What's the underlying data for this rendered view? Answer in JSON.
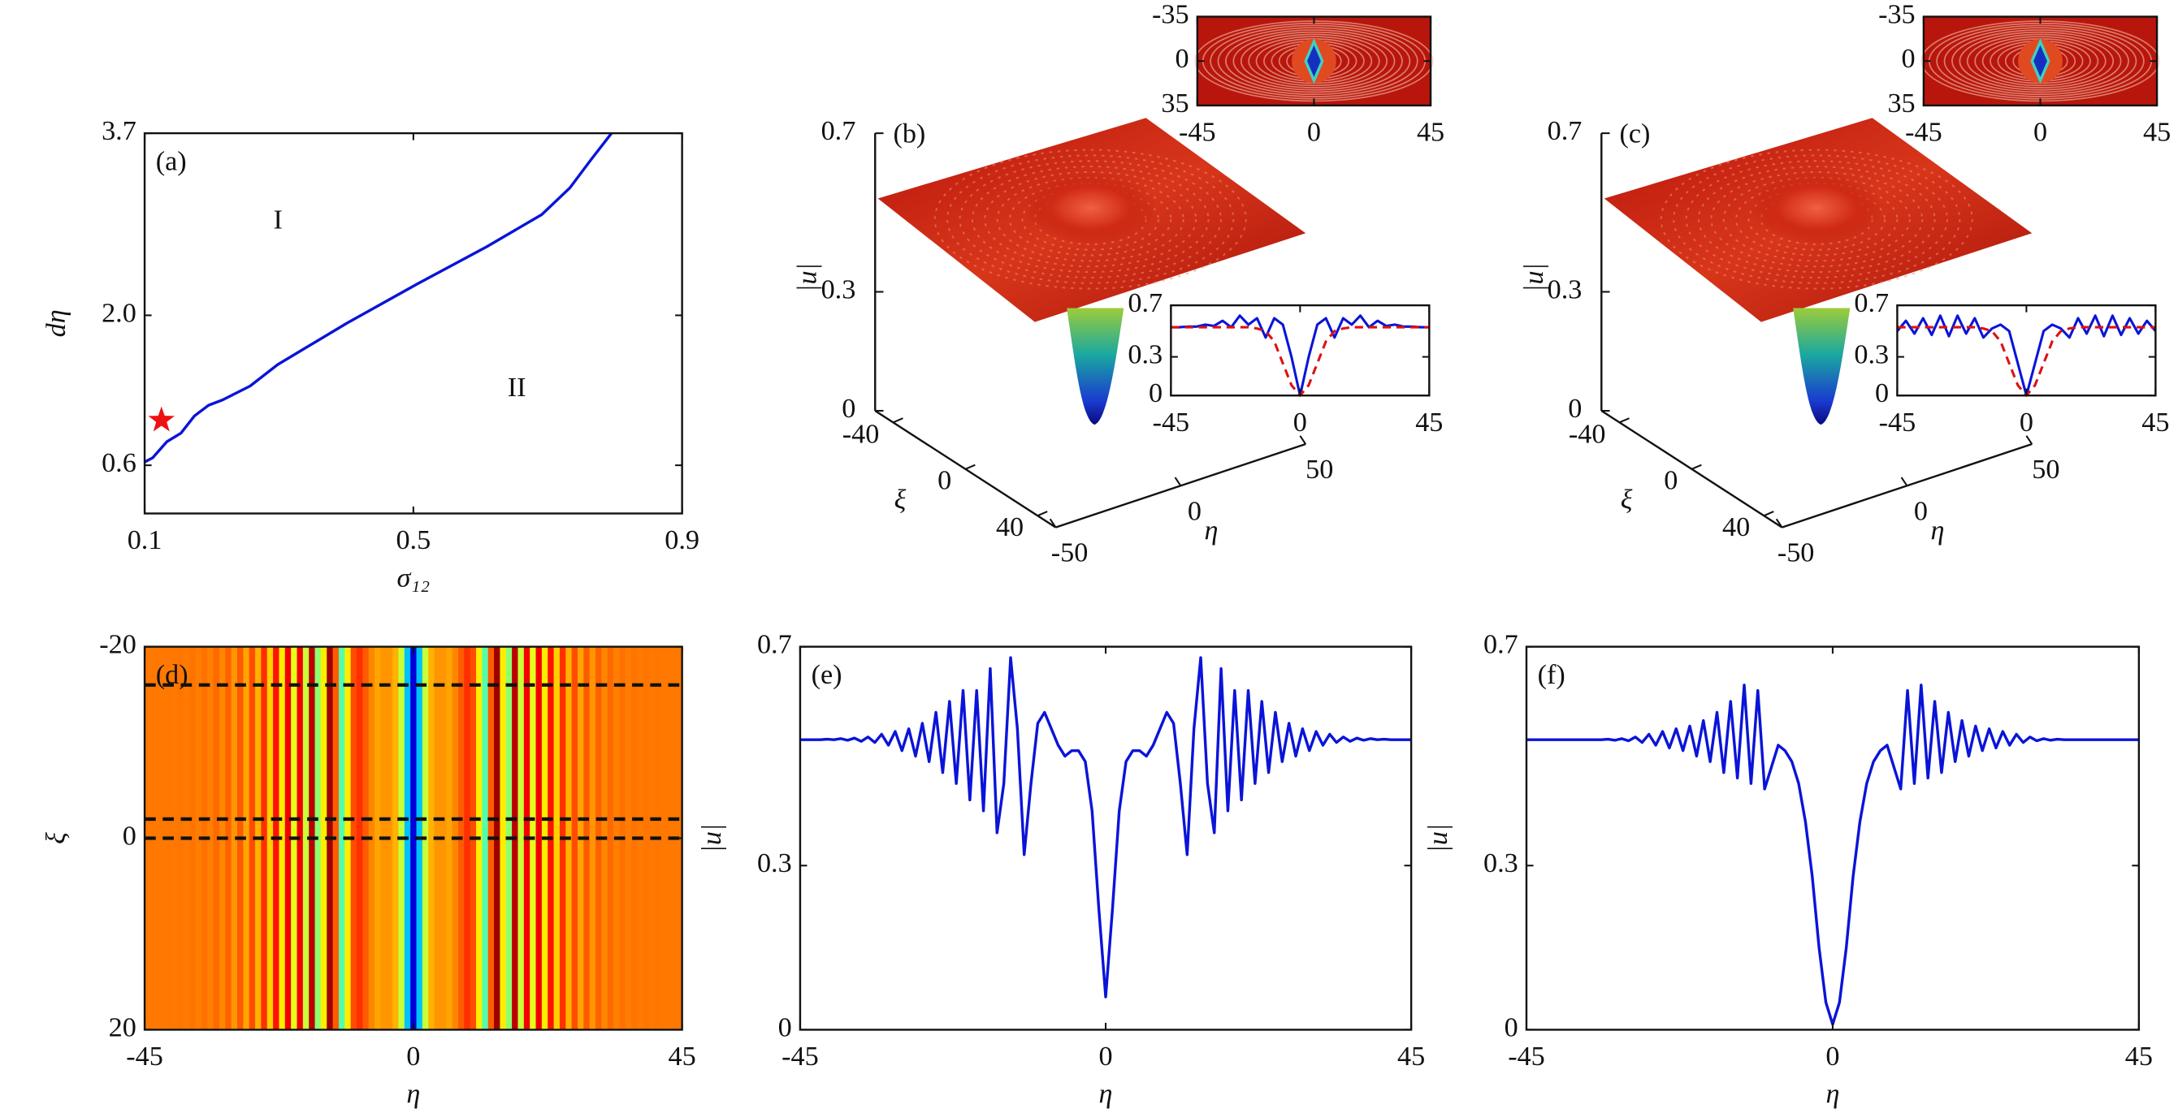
{
  "chart_data": [
    {
      "type": "line",
      "panel": "(a)",
      "xlabel": "σ₁₂",
      "ylabel": "dη",
      "xlim": [
        0.1,
        0.9
      ],
      "ylim": [
        0.15,
        3.7
      ],
      "xticks": [
        0.1,
        0.5,
        0.9
      ],
      "yticks": [
        0.6,
        {
          "value": 2,
          "label": "2.0"
        },
        3.7
      ],
      "x": [
        0.1,
        0.112,
        0.133,
        0.154,
        0.174,
        0.195,
        0.216,
        0.257,
        0.298,
        0.402,
        0.505,
        0.609,
        0.691,
        0.733,
        0.764,
        0.795
      ],
      "series": [
        {
          "color": "#0a14d8",
          "values": [
            0.63,
            0.67,
            0.82,
            0.9,
            1.06,
            1.16,
            1.21,
            1.34,
            1.54,
            1.93,
            2.29,
            2.64,
            2.94,
            3.19,
            3.45,
            3.7
          ]
        }
      ],
      "marker": {
        "x": 0.125,
        "y": 1.02,
        "color": "#ee1111"
      },
      "region_labels": [
        "I",
        "II"
      ]
    },
    {
      "type": "surface3d",
      "panel": "(b)",
      "zlabel": "|u|",
      "xilabel": "ξ",
      "etalabel": "η",
      "zlim": [
        0,
        0.7
      ],
      "zticks": [
        0,
        0.3,
        0.7
      ],
      "xilim": [
        -50,
        50
      ],
      "xiticks": [
        -40,
        0,
        40
      ],
      "etalim": [
        -50,
        50
      ],
      "etaticks": [
        -50,
        0,
        50
      ],
      "top_inset": {
        "xlim": [
          -45,
          45
        ],
        "xticks": [
          -45,
          0,
          45
        ],
        "ylim": [
          -35,
          35
        ],
        "yticks": [
          -35,
          0,
          35
        ],
        "y_inverted": true
      },
      "side_inset": {
        "type": "line",
        "xlim": [
          -45,
          45
        ],
        "xticks": [
          -45,
          0,
          45
        ],
        "ylim": [
          0,
          0.7
        ],
        "yticks": [
          0,
          0.3,
          0.7
        ],
        "x": [
          -45,
          -42,
          -39,
          -36,
          -33,
          -30,
          -27,
          -24,
          -21,
          -18,
          -15,
          -12,
          -9,
          -6,
          -3,
          0,
          3,
          6,
          9,
          12,
          15,
          18,
          21,
          24,
          27,
          30,
          33,
          36,
          39,
          42,
          45
        ],
        "series": [
          {
            "color": "#0a14d8",
            "values": [
              0.53,
              0.53,
              0.535,
              0.535,
              0.55,
              0.54,
              0.58,
              0.53,
              0.62,
              0.55,
              0.6,
              0.45,
              0.6,
              0.55,
              0.3,
              0.0,
              0.3,
              0.55,
              0.6,
              0.45,
              0.6,
              0.55,
              0.62,
              0.53,
              0.58,
              0.54,
              0.55,
              0.535,
              0.535,
              0.53,
              0.53
            ]
          },
          {
            "color": "#dd1111",
            "dash": true,
            "values": [
              0.53,
              0.53,
              0.53,
              0.53,
              0.53,
              0.53,
              0.53,
              0.53,
              0.53,
              0.53,
              0.52,
              0.5,
              0.42,
              0.25,
              0.08,
              0,
              0.08,
              0.25,
              0.42,
              0.5,
              0.52,
              0.53,
              0.53,
              0.53,
              0.53,
              0.53,
              0.53,
              0.53,
              0.53,
              0.53,
              0.53
            ]
          }
        ]
      }
    },
    {
      "type": "surface3d",
      "panel": "(c)",
      "zlabel": "|u|",
      "xilabel": "ξ",
      "etalabel": "η",
      "zlim": [
        0,
        0.7
      ],
      "zticks": [
        0,
        0.3,
        0.7
      ],
      "xilim": [
        -50,
        50
      ],
      "xiticks": [
        -40,
        0,
        40
      ],
      "etalim": [
        -50,
        50
      ],
      "etaticks": [
        -50,
        0,
        50
      ],
      "top_inset": {
        "xlim": [
          -45,
          45
        ],
        "xticks": [
          -45,
          0,
          45
        ],
        "ylim": [
          -35,
          35
        ],
        "yticks": [
          -35,
          0,
          35
        ],
        "y_inverted": true
      },
      "side_inset": {
        "type": "line",
        "xlim": [
          -45,
          45
        ],
        "xticks": [
          -45,
          0,
          45
        ],
        "ylim": [
          0,
          0.7
        ],
        "yticks": [
          0,
          0.3,
          0.7
        ],
        "x": [
          -45,
          -42,
          -39,
          -36,
          -33,
          -30,
          -27,
          -24,
          -21,
          -18,
          -15,
          -12,
          -9,
          -6,
          -3,
          0,
          3,
          6,
          9,
          12,
          15,
          18,
          21,
          24,
          27,
          30,
          33,
          36,
          39,
          42,
          45
        ],
        "series": [
          {
            "color": "#0a14d8",
            "values": [
              0.5,
              0.58,
              0.48,
              0.6,
              0.47,
              0.62,
              0.46,
              0.62,
              0.48,
              0.6,
              0.45,
              0.52,
              0.55,
              0.5,
              0.25,
              0.0,
              0.25,
              0.5,
              0.55,
              0.52,
              0.45,
              0.6,
              0.48,
              0.62,
              0.46,
              0.62,
              0.47,
              0.6,
              0.48,
              0.58,
              0.5
            ]
          },
          {
            "color": "#dd1111",
            "dash": true,
            "values": [
              0.53,
              0.53,
              0.53,
              0.53,
              0.53,
              0.53,
              0.53,
              0.53,
              0.53,
              0.53,
              0.52,
              0.5,
              0.42,
              0.25,
              0.08,
              0,
              0.08,
              0.25,
              0.42,
              0.5,
              0.52,
              0.53,
              0.53,
              0.53,
              0.53,
              0.53,
              0.53,
              0.53,
              0.53,
              0.53,
              0.53
            ]
          }
        ]
      }
    },
    {
      "type": "heatmap",
      "panel": "(d)",
      "xlabel": "η",
      "ylabel": "ξ",
      "xlim": [
        -45,
        45
      ],
      "xticks": [
        -45,
        0,
        45
      ],
      "ylim": [
        -20,
        20
      ],
      "yticks": [
        -20,
        0,
        20
      ],
      "y_inverted": true,
      "colormap": "jet",
      "clim": [
        0,
        0.7
      ],
      "hlines": [
        -16,
        -2,
        0
      ],
      "x": [
        -45,
        -44,
        -43,
        -42,
        -41,
        -40,
        -39,
        -38,
        -37,
        -36,
        -35,
        -34,
        -33,
        -32,
        -31,
        -30,
        -29,
        -28,
        -27,
        -26,
        -25,
        -24,
        -23,
        -22,
        -21,
        -20,
        -19,
        -18,
        -17,
        -16,
        -15,
        -14,
        -13,
        -12,
        -11,
        -10,
        -9,
        -8,
        -7,
        -6,
        -5,
        -4,
        -3,
        -2,
        -1,
        0,
        1,
        2,
        3,
        4,
        5,
        6,
        7,
        8,
        9,
        10,
        11,
        12,
        13,
        14,
        15,
        16,
        17,
        18,
        19,
        20,
        21,
        22,
        23,
        24,
        25,
        26,
        27,
        28,
        29,
        30,
        31,
        32,
        33,
        34,
        35,
        36,
        37,
        38,
        39,
        40,
        41,
        42,
        43,
        44,
        45
      ],
      "values": [
        0.53,
        0.53,
        0.53,
        0.53,
        0.531,
        0.53,
        0.532,
        0.529,
        0.533,
        0.527,
        0.535,
        0.525,
        0.54,
        0.52,
        0.545,
        0.51,
        0.55,
        0.5,
        0.56,
        0.49,
        0.58,
        0.47,
        0.6,
        0.45,
        0.62,
        0.42,
        0.62,
        0.4,
        0.66,
        0.36,
        0.45,
        0.68,
        0.55,
        0.32,
        0.45,
        0.56,
        0.58,
        0.55,
        0.52,
        0.5,
        0.51,
        0.51,
        0.49,
        0.4,
        0.22,
        0.06,
        0.22,
        0.4,
        0.49,
        0.51,
        0.51,
        0.5,
        0.52,
        0.55,
        0.58,
        0.56,
        0.45,
        0.32,
        0.55,
        0.68,
        0.45,
        0.36,
        0.66,
        0.4,
        0.62,
        0.42,
        0.62,
        0.45,
        0.6,
        0.47,
        0.58,
        0.49,
        0.56,
        0.5,
        0.55,
        0.51,
        0.545,
        0.52,
        0.54,
        0.525,
        0.535,
        0.527,
        0.533,
        0.529,
        0.532,
        0.53,
        0.531,
        0.53,
        0.53,
        0.53,
        0.53
      ]
    },
    {
      "type": "line",
      "panel": "(e)",
      "xlabel": "η",
      "ylabel": "|u|",
      "xlim": [
        -45,
        45
      ],
      "xticks": [
        -45,
        0,
        45
      ],
      "ylim": [
        0,
        0.7
      ],
      "yticks": [
        0,
        0.3,
        0.7
      ],
      "x": [
        -45,
        -44,
        -43,
        -42,
        -41,
        -40,
        -39,
        -38,
        -37,
        -36,
        -35,
        -34,
        -33,
        -32,
        -31,
        -30,
        -29,
        -28,
        -27,
        -26,
        -25,
        -24,
        -23,
        -22,
        -21,
        -20,
        -19,
        -18,
        -17,
        -16,
        -15,
        -14,
        -13,
        -12,
        -11,
        -10,
        -9,
        -8,
        -7,
        -6,
        -5,
        -4,
        -3,
        -2,
        -1,
        0,
        1,
        2,
        3,
        4,
        5,
        6,
        7,
        8,
        9,
        10,
        11,
        12,
        13,
        14,
        15,
        16,
        17,
        18,
        19,
        20,
        21,
        22,
        23,
        24,
        25,
        26,
        27,
        28,
        29,
        30,
        31,
        32,
        33,
        34,
        35,
        36,
        37,
        38,
        39,
        40,
        41,
        42,
        43,
        44,
        45
      ],
      "series": [
        {
          "color": "#0a14d8",
          "values": [
            0.53,
            0.53,
            0.53,
            0.53,
            0.531,
            0.53,
            0.532,
            0.529,
            0.533,
            0.527,
            0.535,
            0.525,
            0.54,
            0.52,
            0.545,
            0.51,
            0.55,
            0.5,
            0.56,
            0.49,
            0.58,
            0.47,
            0.6,
            0.45,
            0.62,
            0.42,
            0.62,
            0.4,
            0.66,
            0.36,
            0.45,
            0.68,
            0.55,
            0.32,
            0.45,
            0.56,
            0.58,
            0.55,
            0.52,
            0.5,
            0.51,
            0.51,
            0.49,
            0.4,
            0.22,
            0.06,
            0.22,
            0.4,
            0.49,
            0.51,
            0.51,
            0.5,
            0.52,
            0.55,
            0.58,
            0.56,
            0.45,
            0.32,
            0.55,
            0.68,
            0.45,
            0.36,
            0.66,
            0.4,
            0.62,
            0.42,
            0.62,
            0.45,
            0.6,
            0.47,
            0.58,
            0.49,
            0.56,
            0.5,
            0.55,
            0.51,
            0.545,
            0.52,
            0.54,
            0.525,
            0.535,
            0.527,
            0.533,
            0.529,
            0.532,
            0.53,
            0.531,
            0.53,
            0.53,
            0.53,
            0.53
          ]
        }
      ]
    },
    {
      "type": "line",
      "panel": "(f)",
      "xlabel": "η",
      "ylabel": "|u|",
      "xlim": [
        -45,
        45
      ],
      "xticks": [
        -45,
        0,
        45
      ],
      "ylim": [
        0,
        0.7
      ],
      "yticks": [
        0,
        0.3,
        0.7
      ],
      "x": [
        -45,
        -44,
        -43,
        -42,
        -41,
        -40,
        -39,
        -38,
        -37,
        -36,
        -35,
        -34,
        -33,
        -32,
        -31,
        -30,
        -29,
        -28,
        -27,
        -26,
        -25,
        -24,
        -23,
        -22,
        -21,
        -20,
        -19,
        -18,
        -17,
        -16,
        -15,
        -14,
        -13,
        -12,
        -11,
        -10,
        -9,
        -8,
        -7,
        -6,
        -5,
        -4,
        -3,
        -2,
        -1,
        0,
        1,
        2,
        3,
        4,
        5,
        6,
        7,
        8,
        9,
        10,
        11,
        12,
        13,
        14,
        15,
        16,
        17,
        18,
        19,
        20,
        21,
        22,
        23,
        24,
        25,
        26,
        27,
        28,
        29,
        30,
        31,
        32,
        33,
        34,
        35,
        36,
        37,
        38,
        39,
        40,
        41,
        42,
        43,
        44,
        45
      ],
      "series": [
        {
          "color": "#0a14d8",
          "values": [
            0.53,
            0.53,
            0.53,
            0.53,
            0.53,
            0.53,
            0.53,
            0.53,
            0.53,
            0.53,
            0.53,
            0.53,
            0.531,
            0.529,
            0.532,
            0.528,
            0.535,
            0.525,
            0.54,
            0.52,
            0.545,
            0.515,
            0.55,
            0.51,
            0.555,
            0.5,
            0.565,
            0.49,
            0.58,
            0.47,
            0.6,
            0.46,
            0.63,
            0.45,
            0.62,
            0.44,
            0.48,
            0.52,
            0.51,
            0.49,
            0.45,
            0.38,
            0.28,
            0.15,
            0.05,
            0.01,
            0.05,
            0.15,
            0.28,
            0.38,
            0.45,
            0.49,
            0.51,
            0.52,
            0.48,
            0.44,
            0.62,
            0.45,
            0.63,
            0.46,
            0.6,
            0.47,
            0.58,
            0.49,
            0.565,
            0.5,
            0.555,
            0.51,
            0.55,
            0.515,
            0.545,
            0.52,
            0.54,
            0.525,
            0.535,
            0.528,
            0.532,
            0.529,
            0.531,
            0.53,
            0.53,
            0.53,
            0.53,
            0.53,
            0.53,
            0.53,
            0.53,
            0.53,
            0.53,
            0.53,
            0.53
          ]
        }
      ]
    }
  ]
}
